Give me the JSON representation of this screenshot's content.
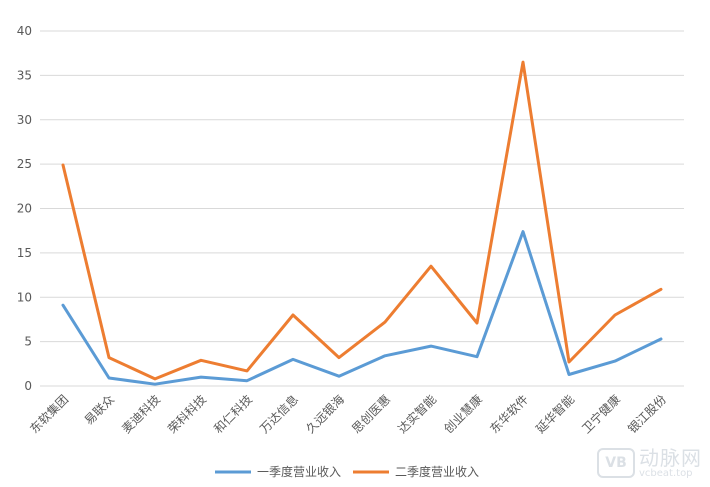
{
  "chart_data": {
    "type": "line",
    "categories": [
      "东软集团",
      "易联众",
      "麦迪科技",
      "荣科科技",
      "和仁科技",
      "万达信息",
      "久远银海",
      "思创医惠",
      "达实智能",
      "创业慧康",
      "东华软件",
      "延华智能",
      "卫宁健康",
      "银江股份"
    ],
    "series": [
      {
        "name": "一季度营业收入",
        "color": "#5b9bd5",
        "values": [
          9.1,
          0.9,
          0.2,
          1.0,
          0.6,
          3.0,
          1.1,
          3.4,
          4.5,
          3.3,
          17.4,
          1.3,
          2.8,
          5.3
        ]
      },
      {
        "name": "二季度营业收入",
        "color": "#ed7d31",
        "values": [
          24.9,
          3.2,
          0.8,
          2.9,
          1.7,
          8.0,
          3.2,
          7.2,
          13.5,
          7.1,
          36.5,
          2.7,
          8.0,
          10.9
        ]
      }
    ],
    "ylim": [
      0,
      40
    ],
    "yticks": [
      0,
      5,
      10,
      15,
      20,
      25,
      30,
      35,
      40
    ],
    "grid": true,
    "legend_position": "bottom-center"
  },
  "watermark": {
    "logo": "VB",
    "main": "动脉网",
    "sub": "vcbeat.top"
  }
}
